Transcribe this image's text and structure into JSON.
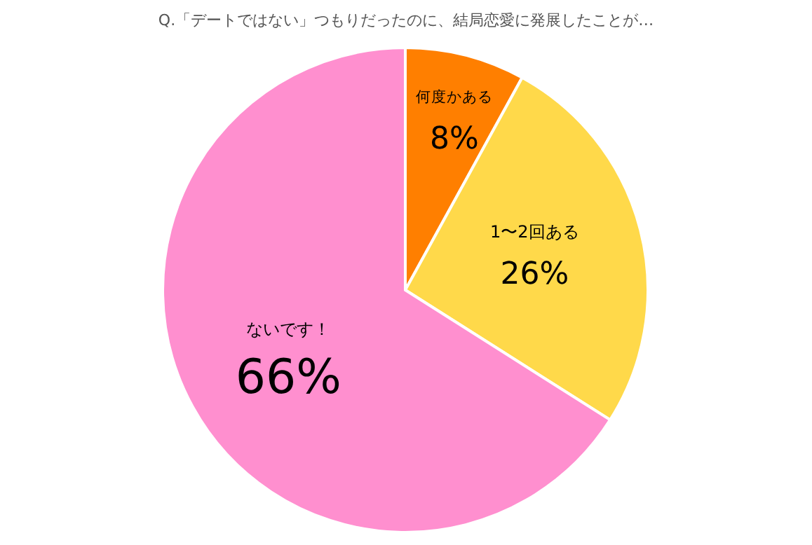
{
  "chart_data": {
    "type": "pie",
    "title": "Q.「デートではない」つもりだったのに、結局恋愛に発展したことが…",
    "categories": [
      "何度かある",
      "1〜2回ある",
      "ないです！"
    ],
    "values": [
      8,
      26,
      66
    ],
    "value_labels": [
      "8%",
      "26%",
      "66%"
    ],
    "colors": [
      "#ff7f00",
      "#ffd94a",
      "#ff8fcf"
    ]
  }
}
